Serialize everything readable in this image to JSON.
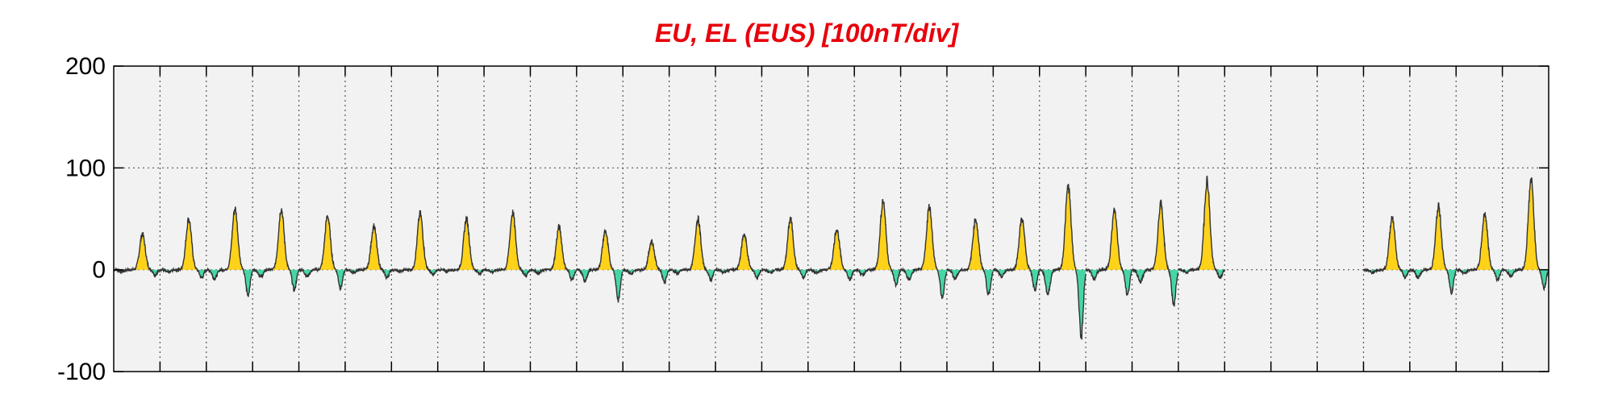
{
  "chart_data": {
    "type": "area",
    "title": "EU, EL (EUS)  [100nT/div]",
    "xlabel": "",
    "ylabel": "",
    "ylim": [
      -100,
      200
    ],
    "yticks": [
      -100,
      0,
      100,
      200
    ],
    "ytick_labels": [
      "-100",
      "0",
      "100",
      "200"
    ],
    "x_divisions": 31,
    "xlim": [
      0,
      31
    ],
    "grid": true,
    "colors": {
      "positive_fill": "#ffd21a",
      "negative_fill": "#46d6a6",
      "trace": "#333333",
      "background": "#f2f2f2",
      "title": "#e8000b"
    },
    "days": [
      {
        "day": 0,
        "peak": 35,
        "trough": -5
      },
      {
        "day": 1,
        "peak": 50,
        "trough": -8
      },
      {
        "day": 2,
        "peak": 60,
        "trough": -25
      },
      {
        "day": 3,
        "peak": 60,
        "trough": -20
      },
      {
        "day": 4,
        "peak": 53,
        "trough": -18
      },
      {
        "day": 5,
        "peak": 43,
        "trough": -8
      },
      {
        "day": 6,
        "peak": 55,
        "trough": -5
      },
      {
        "day": 7,
        "peak": 50,
        "trough": -4
      },
      {
        "day": 8,
        "peak": 56,
        "trough": -6
      },
      {
        "day": 9,
        "peak": 42,
        "trough": -10
      },
      {
        "day": 10,
        "peak": 38,
        "trough": -30
      },
      {
        "day": 11,
        "peak": 28,
        "trough": -12
      },
      {
        "day": 12,
        "peak": 50,
        "trough": -10
      },
      {
        "day": 13,
        "peak": 35,
        "trough": -8
      },
      {
        "day": 14,
        "peak": 50,
        "trough": -8
      },
      {
        "day": 15,
        "peak": 40,
        "trough": -10
      },
      {
        "day": 16,
        "peak": 68,
        "trough": -15
      },
      {
        "day": 17,
        "peak": 62,
        "trough": -28
      },
      {
        "day": 18,
        "peak": 50,
        "trough": -25
      },
      {
        "day": 19,
        "peak": 50,
        "trough": -20
      },
      {
        "day": 20,
        "peak": 82,
        "trough": -68
      },
      {
        "day": 21,
        "peak": 58,
        "trough": -25
      },
      {
        "day": 22,
        "peak": 65,
        "trough": -35
      },
      {
        "day": 23,
        "peak": 88,
        "trough": -8
      },
      {
        "day": 27,
        "peak": 52,
        "trough": -8
      },
      {
        "day": 28,
        "peak": 62,
        "trough": -22
      },
      {
        "day": 29,
        "peak": 55,
        "trough": -10
      },
      {
        "day": 30,
        "peak": 88,
        "trough": -18
      }
    ]
  }
}
